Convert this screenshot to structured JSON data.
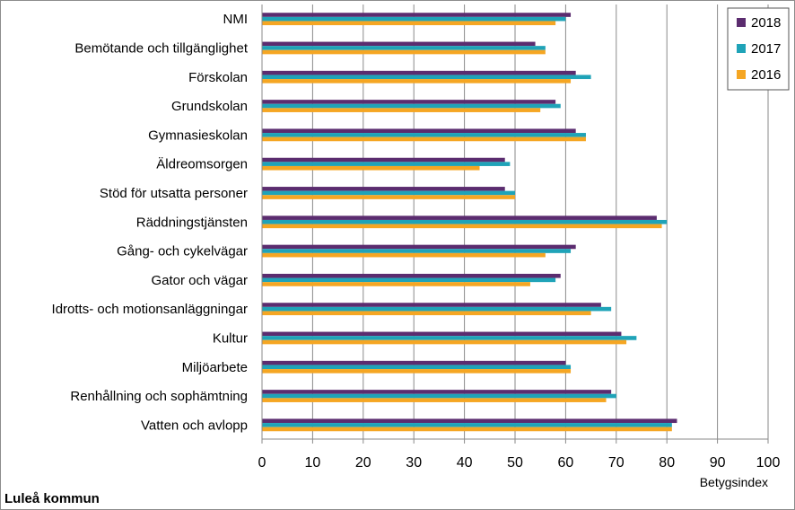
{
  "chart_data": {
    "type": "bar",
    "orientation": "horizontal",
    "title": "",
    "xlabel": "Betygsindex",
    "ylabel": "",
    "xlim": [
      0,
      100
    ],
    "xticks": [
      0,
      10,
      20,
      30,
      40,
      50,
      60,
      70,
      80,
      90,
      100
    ],
    "grid": true,
    "legend_position": "top-right",
    "categories": [
      "NMI",
      "Bemötande och tillgänglighet",
      "Förskolan",
      "Grundskolan",
      "Gymnasieskolan",
      "Äldreomsorgen",
      "Stöd för utsatta personer",
      "Räddningstjänsten",
      "Gång- och cykelvägar",
      "Gator och vägar",
      "Idrotts- och motionsanläggningar",
      "Kultur",
      "Miljöarbete",
      "Renhållning och sophämtning",
      "Vatten och avlopp"
    ],
    "series": [
      {
        "name": "2018",
        "color": "#5b2c6f",
        "values": [
          61,
          54,
          62,
          58,
          62,
          48,
          48,
          78,
          62,
          59,
          67,
          71,
          60,
          69,
          82
        ]
      },
      {
        "name": "2017",
        "color": "#1fa3b8",
        "values": [
          60,
          56,
          65,
          59,
          64,
          49,
          50,
          80,
          61,
          58,
          69,
          74,
          61,
          70,
          81
        ]
      },
      {
        "name": "2016",
        "color": "#f5a623",
        "values": [
          58,
          56,
          61,
          55,
          64,
          43,
          50,
          79,
          56,
          53,
          65,
          72,
          61,
          68,
          81
        ]
      }
    ]
  },
  "footer": "Luleå kommun"
}
